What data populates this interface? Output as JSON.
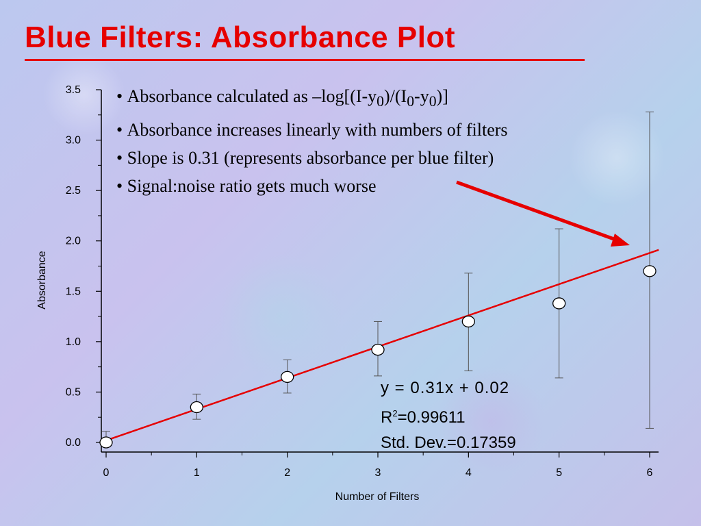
{
  "title": "Blue Filters: Absorbance Plot",
  "bullets": [
    {
      "prefix": "Absorbance calculated as –log[(I-y",
      "sub1": "0",
      "mid": ")/(I",
      "sub2": "0",
      "mid2": "-y",
      "sub3": "0",
      "suffix": ")]"
    },
    {
      "text": "Absorbance increases linearly with numbers of  filters"
    },
    {
      "text": "Slope is 0.31 (represents absorbance per blue filter)"
    },
    {
      "text": "Signal:noise ratio gets much worse"
    }
  ],
  "fit": {
    "equation": "y = 0.31x + 0.02",
    "r2_prefix": "R",
    "r2_sup": "2",
    "r2_value": "=0.99611",
    "std_dev": "Std. Dev.=0.17359",
    "slope": 0.31,
    "intercept": 0.02
  },
  "colors": {
    "title": "#e60000",
    "fit_line": "#e60000",
    "arrow": "#e60000",
    "error_bar": "#555555"
  },
  "chart_data": {
    "type": "scatter",
    "xlabel": "Number of Filters",
    "ylabel": "Absorbance",
    "xlim": [
      0,
      6
    ],
    "ylim": [
      0,
      3.5
    ],
    "x_ticks": [
      "0",
      "1",
      "2",
      "3",
      "4",
      "5",
      "6"
    ],
    "y_ticks": [
      "0.0",
      "0.5",
      "1.0",
      "1.5",
      "2.0",
      "2.5",
      "3.0",
      "3.5"
    ],
    "grid": false,
    "points": [
      {
        "x": 0,
        "y": 0.0,
        "err_low": 0.0,
        "err_high": 0.11
      },
      {
        "x": 1,
        "y": 0.35,
        "err_low": 0.23,
        "err_high": 0.48
      },
      {
        "x": 2,
        "y": 0.65,
        "err_low": 0.49,
        "err_high": 0.82
      },
      {
        "x": 3,
        "y": 0.92,
        "err_low": 0.66,
        "err_high": 1.2
      },
      {
        "x": 4,
        "y": 1.2,
        "err_low": 0.71,
        "err_high": 1.68
      },
      {
        "x": 5,
        "y": 1.38,
        "err_low": 0.64,
        "err_high": 2.12
      },
      {
        "x": 6,
        "y": 1.7,
        "err_low": 0.14,
        "err_high": 3.28
      }
    ]
  }
}
